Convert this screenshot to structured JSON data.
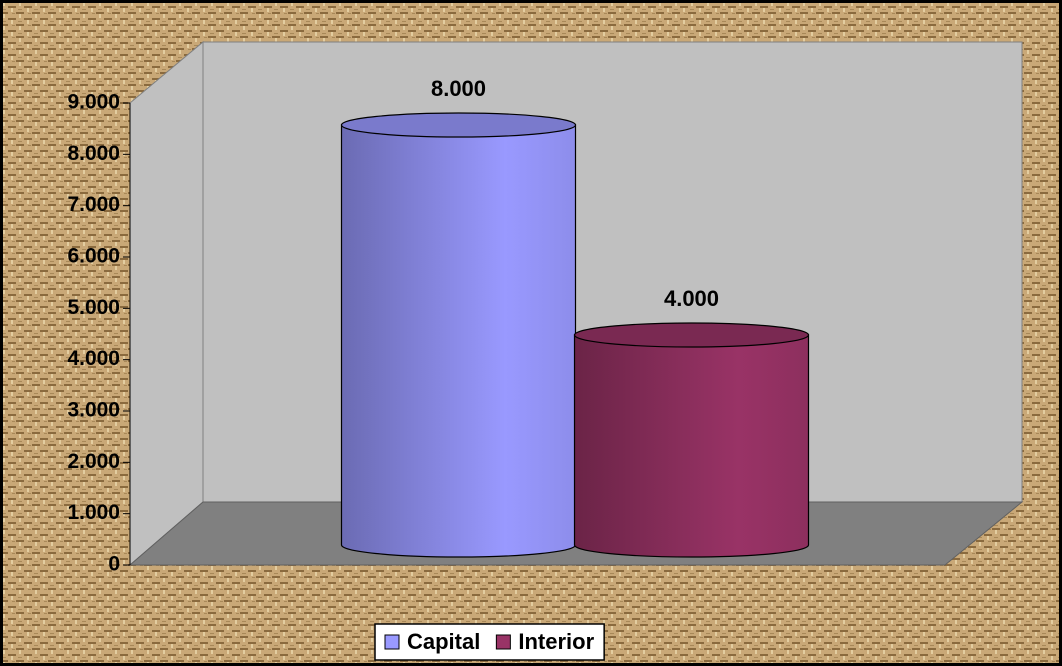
{
  "chart_data": {
    "type": "bar3d",
    "categories": [
      null
    ],
    "series": [
      {
        "name": "Capital",
        "color": "#9999ff",
        "values": [
          8000
        ],
        "value_labels": [
          "8.000"
        ]
      },
      {
        "name": "Interior",
        "color": "#993366",
        "values": [
          4000
        ],
        "value_labels": [
          "4.000"
        ]
      }
    ],
    "ylim": [
      0,
      9000
    ],
    "yticks": [
      0,
      {
        "value": 1000,
        "label": "1.000"
      },
      {
        "value": 2000,
        "label": "2.000"
      },
      {
        "value": 3000,
        "label": "3.000"
      },
      {
        "value": 4000,
        "label": "4.000"
      },
      {
        "value": 5000,
        "label": "5.000"
      },
      {
        "value": 6000,
        "label": "6.000"
      },
      {
        "value": 7000,
        "label": "7.000"
      },
      {
        "value": 8000,
        "label": "8.000"
      },
      {
        "value": 9000,
        "label": "9.000"
      }
    ],
    "legend": "bottom"
  }
}
